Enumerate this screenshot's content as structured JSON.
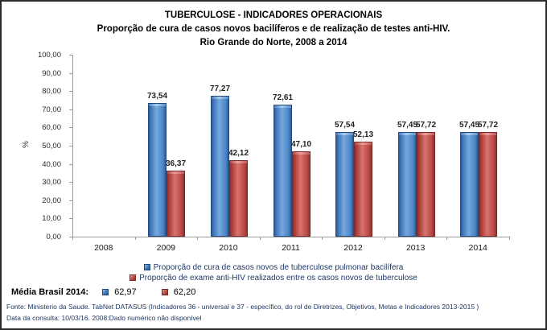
{
  "title": {
    "line1": "TUBERCULOSE - INDICADORES OPERACIONAIS",
    "line2": "Proporção de cura de casos novos bacilíferos e de realização de testes anti-HIV.",
    "line3": "Rio Grande do Norte, 2008 a 2014"
  },
  "chart_data": {
    "type": "bar",
    "categories": [
      "2008",
      "2009",
      "2010",
      "2011",
      "2012",
      "2013",
      "2014"
    ],
    "series": [
      {
        "name": "Proporção de cura de casos novos de tuberculose pulmonar bacilífera",
        "color": "#4177B8",
        "values": [
          null,
          73.54,
          77.27,
          72.61,
          57.54,
          57.45,
          57.45
        ],
        "labels": [
          "",
          "73,54",
          "77,27",
          "72,61",
          "57,54",
          "57,45",
          "57,45"
        ]
      },
      {
        "name": "Proporção de exame anti-HIV realizados entre os casos novos de tuberculose",
        "color": "#BE4B48",
        "values": [
          null,
          36.37,
          42.12,
          47.1,
          52.13,
          57.72,
          57.72
        ],
        "labels": [
          "",
          "36,37",
          "42,12",
          "47,10",
          "52,13",
          "57,72",
          "57,72"
        ]
      }
    ],
    "ylabel": "%",
    "ylim": [
      0,
      100
    ],
    "y_ticks": [
      "100,00",
      "90,00",
      "80,00",
      "70,00",
      "60,00",
      "50,00",
      "40,00",
      "30,00",
      "20,00",
      "10,00",
      "0,00"
    ],
    "grid": false,
    "legend_position": "bottom",
    "note": "2008: Dado numérico não disponível"
  },
  "media_brasil": {
    "label": "Média Brasil 2014:",
    "blue_value": "62,97",
    "red_value": "62,20"
  },
  "footer": {
    "line1": "Fonte: Ministerio da Saude. TabNet DATASUS (Indicadores 36 - universal e 37 - específico, do rol de Diretrizes, Objetivos, Metas e Indicadores 2013-2015 )",
    "line2": "Data da consulta: 10/03/16. 2008:Dado numérico não disponível"
  }
}
